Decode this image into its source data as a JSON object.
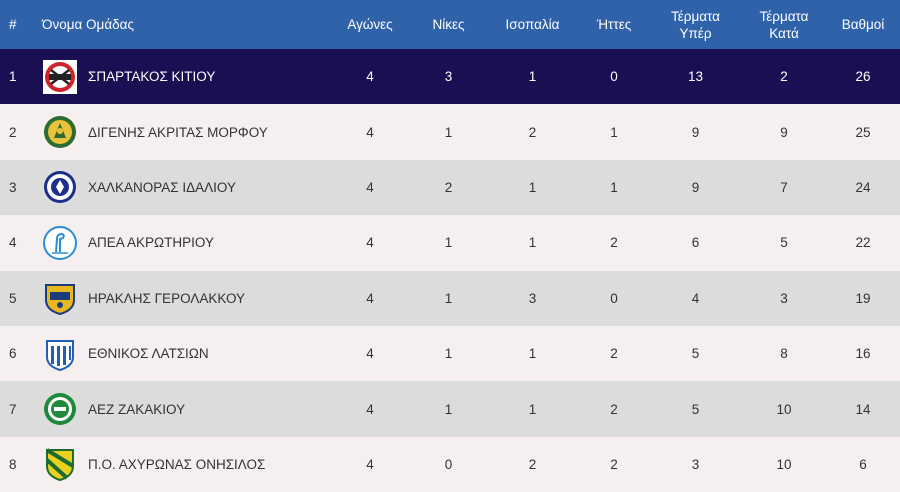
{
  "header": {
    "rank": "#",
    "team": "Όνομα Ομάδας",
    "played": "Αγώνες",
    "wins": "Νίκες",
    "draws": "Ισοπαλία",
    "losses": "Ήττες",
    "goals_for": "Τέρματα Υπέρ",
    "goals_against": "Τέρματα Κατά",
    "points": "Βαθμοί"
  },
  "rows": [
    {
      "rank": "1",
      "team": "ΣΠΑΡΤΑΚΟΣ ΚΙΤΙΟΥ",
      "played": "4",
      "wins": "3",
      "draws": "1",
      "losses": "0",
      "goals_for": "13",
      "goals_against": "2",
      "points": "26",
      "crest_icon": "spartakos-crest-icon"
    },
    {
      "rank": "2",
      "team": "ΔΙΓΕΝΗΣ ΑΚΡΙΤΑΣ ΜΟΡΦΟΥ",
      "played": "4",
      "wins": "1",
      "draws": "2",
      "losses": "1",
      "goals_for": "9",
      "goals_against": "9",
      "points": "25",
      "crest_icon": "digenis-crest-icon"
    },
    {
      "rank": "3",
      "team": "ΧΑΛΚΑΝΟΡΑΣ ΙΔΑΛΙΟΥ",
      "played": "4",
      "wins": "2",
      "draws": "1",
      "losses": "1",
      "goals_for": "9",
      "goals_against": "7",
      "points": "24",
      "crest_icon": "chalkanoras-crest-icon"
    },
    {
      "rank": "4",
      "team": "ΑΠΕΑ ΑΚΡΩΤΗΡΙΟΥ",
      "played": "4",
      "wins": "1",
      "draws": "1",
      "losses": "2",
      "goals_for": "6",
      "goals_against": "5",
      "points": "22",
      "crest_icon": "apea-crest-icon"
    },
    {
      "rank": "5",
      "team": "ΗΡΑΚΛΗΣ ΓΕΡΟΛΑΚΚΟΥ",
      "played": "4",
      "wins": "1",
      "draws": "3",
      "losses": "0",
      "goals_for": "4",
      "goals_against": "3",
      "points": "19",
      "crest_icon": "iraklis-crest-icon"
    },
    {
      "rank": "6",
      "team": "ΕΘΝΙΚΟΣ ΛΑΤΣΙΩΝ",
      "played": "4",
      "wins": "1",
      "draws": "1",
      "losses": "2",
      "goals_for": "5",
      "goals_against": "8",
      "points": "16",
      "crest_icon": "ethnikos-crest-icon"
    },
    {
      "rank": "7",
      "team": "ΑΕΖ ΖΑΚΑΚΙΟΥ",
      "played": "4",
      "wins": "1",
      "draws": "1",
      "losses": "2",
      "goals_for": "5",
      "goals_against": "10",
      "points": "14",
      "crest_icon": "aez-crest-icon"
    },
    {
      "rank": "8",
      "team": "Π.Ο. ΑΧΥΡΩΝΑΣ ΟΝΗΣΙΛΟΣ",
      "played": "4",
      "wins": "0",
      "draws": "2",
      "losses": "2",
      "goals_for": "3",
      "goals_against": "10",
      "points": "6",
      "crest_icon": "achyronas-crest-icon"
    }
  ],
  "colors": {
    "header_bg": "#2f62a9",
    "highlight_row_bg": "#1a0f52",
    "odd_row_bg": "#f6efef",
    "even_row_bg": "#dcdcdc"
  }
}
